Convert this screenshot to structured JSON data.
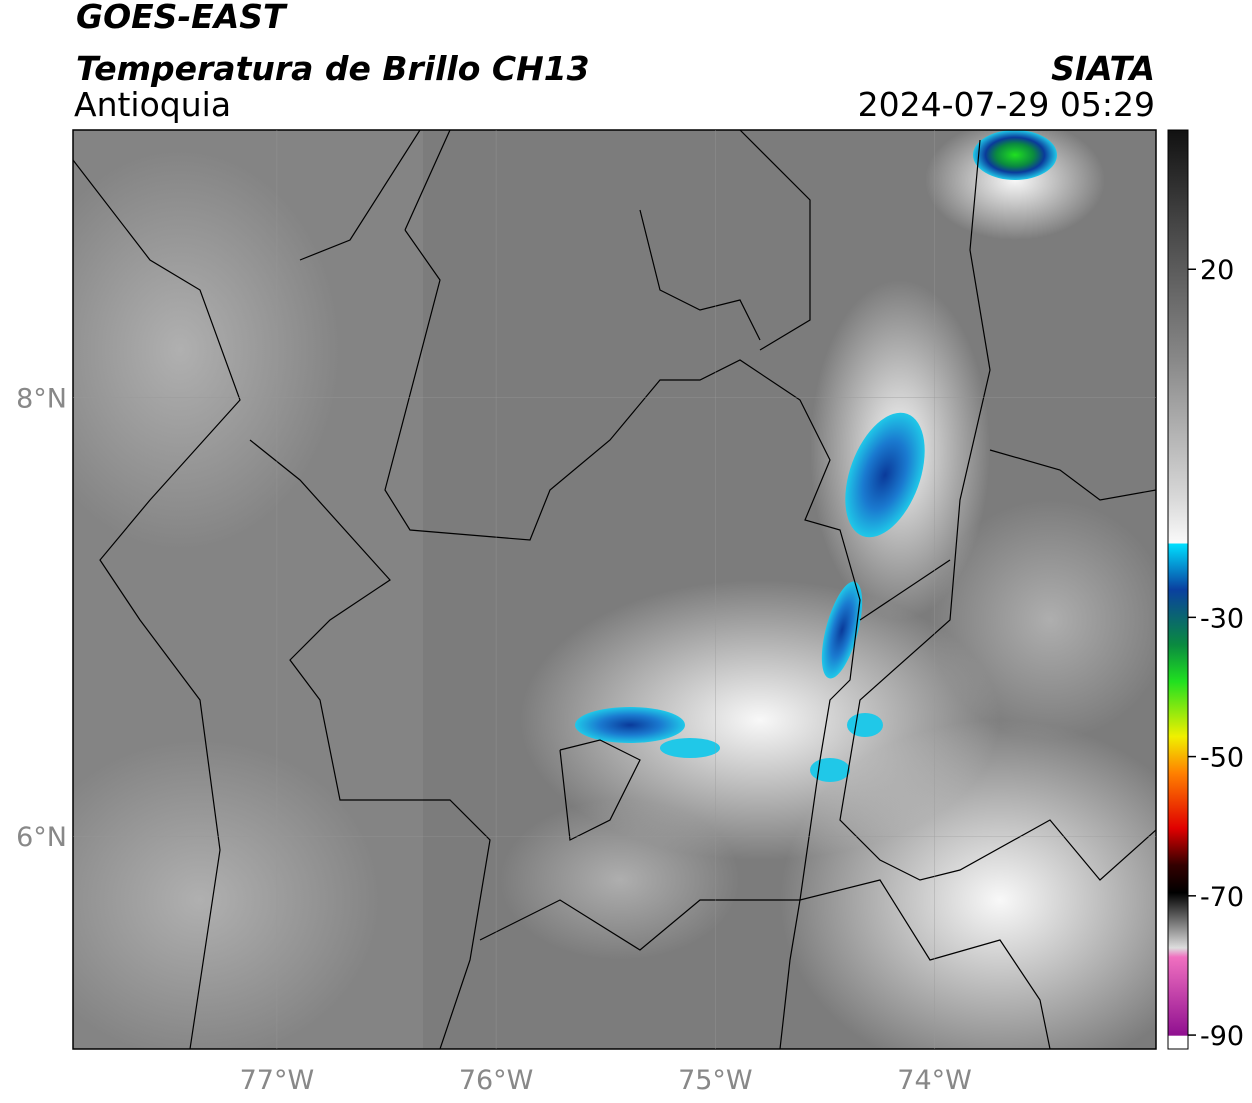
{
  "header": {
    "title": "GOES-EAST",
    "subtitle": "Temperatura de Brillo CH13",
    "region": "Antioquia",
    "source": "SIATA",
    "timestamp": "2024-07-29 05:29"
  },
  "map": {
    "xlim": [
      -77.93,
      -72.99
    ],
    "ylim": [
      5.03,
      9.22
    ],
    "xticks": [
      {
        "value": -77,
        "label": "77°W"
      },
      {
        "value": -76,
        "label": "76°W"
      },
      {
        "value": -75,
        "label": "75°W"
      },
      {
        "value": -74,
        "label": "74°W"
      }
    ],
    "yticks": [
      {
        "value": 8,
        "label": "8°N"
      },
      {
        "value": 6,
        "label": "6°N"
      }
    ],
    "grid": true
  },
  "colorbar": {
    "lim": [
      -92,
      40
    ],
    "ticks": [
      20,
      -30,
      -50,
      -70,
      -90
    ]
  }
}
